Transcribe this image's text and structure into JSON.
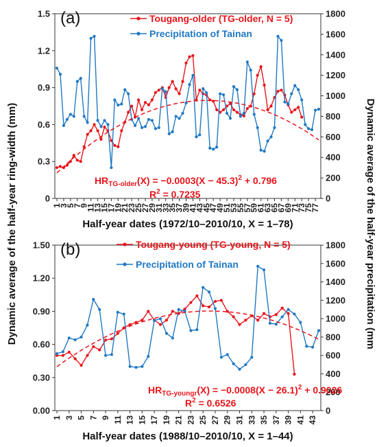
{
  "figure": {
    "left_ylabel": "Dynamic average of the half-year ring-width (mm)",
    "right_ylabel": "Dynamic average of the half-year precipitation (mm"
  },
  "colors": {
    "tree": "#e8141a",
    "precip": "#1f78c3",
    "axis": "#333333"
  },
  "chart_data": [
    {
      "type": "line",
      "panel_label": "(a)",
      "xlabel": "Half-year dates (1972/10–2010/10, X = 1–78)",
      "x_tick_labels": [
        "1",
        "3",
        "5",
        "7",
        "9",
        "11",
        "13",
        "15",
        "17",
        "19",
        "21",
        "23",
        "25",
        "27",
        "29",
        "31",
        "33",
        "35",
        "37",
        "39",
        "41",
        "43",
        "45",
        "47",
        "49",
        "51",
        "53",
        "55",
        "57",
        "59",
        "61",
        "63",
        "65",
        "67",
        "69",
        "71",
        "73",
        "75",
        "77"
      ],
      "xlim": [
        1,
        78
      ],
      "ylim_left": [
        0,
        1.5
      ],
      "yticks_left": [
        "0",
        "0.3",
        "0.6",
        "0.9",
        "1.2",
        "1.5"
      ],
      "ylim_right": [
        0,
        1800
      ],
      "yticks_right": [
        "0",
        "200",
        "400",
        "600",
        "800",
        "1000",
        "1200",
        "1400",
        "1600",
        "1800"
      ],
      "series": [
        {
          "name": "Tougang-older (TG-older, N = 5)",
          "axis": "left",
          "x": [
            1,
            2,
            3,
            4,
            5,
            6,
            7,
            8,
            9,
            10,
            11,
            12,
            13,
            14,
            15,
            16,
            17,
            18,
            19,
            20,
            21,
            22,
            23,
            24,
            25,
            26,
            27,
            28,
            29,
            30,
            31,
            32,
            33,
            34,
            35,
            36,
            37,
            38,
            39,
            40,
            41,
            42,
            43,
            44,
            45,
            46,
            47,
            48,
            49,
            50,
            51,
            52,
            53,
            54,
            55,
            56,
            57,
            58,
            59,
            60,
            61,
            62,
            63,
            64,
            65,
            66,
            67,
            68,
            69,
            70,
            71,
            72,
            73
          ],
          "values": [
            0.25,
            0.26,
            0.25,
            0.27,
            0.3,
            0.35,
            0.31,
            0.3,
            0.42,
            0.52,
            0.55,
            0.6,
            0.55,
            0.48,
            0.58,
            0.55,
            0.47,
            0.43,
            0.42,
            0.55,
            0.62,
            0.7,
            0.75,
            0.66,
            0.8,
            0.72,
            0.78,
            0.76,
            0.8,
            0.86,
            0.88,
            0.9,
            0.82,
            0.9,
            0.95,
            0.89,
            0.85,
            0.95,
            1.1,
            1.15,
            1.16,
            0.8,
            0.88,
            0.85,
            0.84,
            0.8,
            0.79,
            0.72,
            0.7,
            0.72,
            0.75,
            0.77,
            0.72,
            0.7,
            0.68,
            0.67,
            0.73,
            0.75,
            0.85,
            1.0,
            1.07,
            0.92,
            0.72,
            0.75,
            0.82,
            0.87,
            0.88,
            0.84,
            0.76,
            0.7,
            0.72,
            0.74,
            0.66
          ]
        },
        {
          "name": "Precipitation of Tainan",
          "axis": "right",
          "x": [
            1,
            2,
            3,
            4,
            5,
            6,
            7,
            8,
            9,
            10,
            11,
            12,
            13,
            14,
            15,
            16,
            17,
            18,
            19,
            20,
            21,
            22,
            23,
            24,
            25,
            26,
            27,
            28,
            29,
            30,
            31,
            32,
            33,
            34,
            35,
            36,
            37,
            38,
            39,
            40,
            41,
            42,
            43,
            44,
            45,
            46,
            47,
            48,
            49,
            50,
            51,
            52,
            53,
            54,
            55,
            56,
            57,
            58,
            59,
            60,
            61,
            62,
            63,
            64,
            65,
            66,
            67,
            68,
            69,
            70,
            71,
            72,
            73,
            74,
            75,
            76,
            77,
            78
          ],
          "values": [
            1270,
            1210,
            710,
            770,
            820,
            800,
            1140,
            1170,
            800,
            740,
            1560,
            1580,
            760,
            700,
            760,
            720,
            300,
            960,
            910,
            920,
            1060,
            1020,
            770,
            710,
            780,
            690,
            700,
            770,
            760,
            680,
            690,
            1070,
            1040,
            630,
            650,
            800,
            780,
            830,
            930,
            1110,
            1200,
            600,
            620,
            1070,
            1030,
            490,
            480,
            500,
            1020,
            1010,
            830,
            780,
            1090,
            1060,
            800,
            830,
            1330,
            1250,
            820,
            690,
            470,
            460,
            560,
            600,
            690,
            1580,
            1540,
            940,
            920,
            1020,
            1100,
            1060,
            960,
            720,
            680,
            670,
            860,
            870
          ]
        }
      ],
      "trend": {
        "axis": "left",
        "equation": "HR(X) = −0.0003(X − 45.3)² + 0.796",
        "eq_prefix": "HR",
        "eq_sub": "TG-older",
        "eq_body": "(X) = −0.0003(X − 45.3)",
        "eq_sup": "2",
        "eq_tail": " + 0.796",
        "r2_label": "R",
        "r2_sup": "2",
        "r2_value": " = 0.7235",
        "a": -0.0003,
        "h": 45.3,
        "k": 0.796
      }
    },
    {
      "type": "line",
      "panel_label": "(b)",
      "xlabel": "Half-year dates (1988/10–2010/10, X = 1–44)",
      "x_tick_labels": [
        "1",
        "3",
        "5",
        "7",
        "9",
        "11",
        "13",
        "15",
        "17",
        "19",
        "21",
        "23",
        "25",
        "27",
        "29",
        "31",
        "33",
        "35",
        "37",
        "39",
        "41",
        "43"
      ],
      "xlim": [
        1,
        44
      ],
      "ylim_left": [
        0,
        1.5
      ],
      "yticks_left": [
        "0.00",
        "0.30",
        "0.60",
        "0.90",
        "1.20",
        "1.50"
      ],
      "ylim_right": [
        0,
        1800
      ],
      "yticks_right": [
        "0",
        "200",
        "400",
        "600",
        "800",
        "1000",
        "1200",
        "1400",
        "1600",
        "1800"
      ],
      "series": [
        {
          "name": "Tougang-young (TG-young, N = 5)",
          "axis": "left",
          "x": [
            1,
            2,
            3,
            4,
            5,
            6,
            7,
            8,
            9,
            10,
            11,
            12,
            13,
            14,
            15,
            16,
            17,
            18,
            19,
            20,
            21,
            22,
            23,
            24,
            25,
            26,
            27,
            28,
            29,
            30,
            31,
            32,
            33,
            34,
            35,
            36,
            37,
            38,
            39,
            40
          ],
          "values": [
            0.5,
            0.5,
            0.53,
            0.47,
            0.41,
            0.5,
            0.58,
            0.55,
            0.64,
            0.65,
            0.7,
            0.75,
            0.78,
            0.8,
            0.82,
            0.9,
            0.82,
            0.78,
            0.82,
            0.9,
            0.88,
            0.92,
            0.98,
            1.04,
            0.95,
            0.94,
            0.99,
            1.0,
            0.9,
            0.85,
            0.78,
            0.82,
            0.86,
            0.82,
            0.88,
            0.85,
            0.87,
            0.93,
            0.88,
            0.33
          ]
        },
        {
          "name": "Precipitation of Tainan",
          "axis": "right",
          "x": [
            1,
            2,
            3,
            4,
            5,
            6,
            7,
            8,
            9,
            10,
            11,
            12,
            13,
            14,
            15,
            16,
            17,
            18,
            19,
            20,
            21,
            22,
            23,
            24,
            25,
            26,
            27,
            28,
            29,
            30,
            31,
            32,
            33,
            34,
            35,
            36,
            37,
            38,
            39,
            40,
            41,
            42,
            43,
            44
          ],
          "values": [
            620,
            640,
            790,
            770,
            800,
            930,
            1210,
            1100,
            600,
            610,
            1070,
            1050,
            480,
            470,
            480,
            590,
            980,
            1000,
            840,
            790,
            1100,
            1080,
            870,
            880,
            1340,
            1290,
            1110,
            580,
            610,
            510,
            450,
            500,
            580,
            1570,
            1530,
            950,
            940,
            1020,
            1100,
            1050,
            960,
            700,
            690,
            870
          ]
        }
      ],
      "trend": {
        "axis": "left",
        "equation": "HR(X) = −0.0008(X − 26.1)² + 0.9026",
        "eq_prefix": "HR",
        "eq_sub": "TG-youngr",
        "eq_body": "(X) = −0.0008(X − 26.1)",
        "eq_sup": "2",
        "eq_tail": " + 0.9026",
        "r2_label": "R",
        "r2_sup": "2",
        "r2_value": " = 0.6526",
        "a": -0.0008,
        "h": 26.1,
        "k": 0.9026
      }
    }
  ]
}
